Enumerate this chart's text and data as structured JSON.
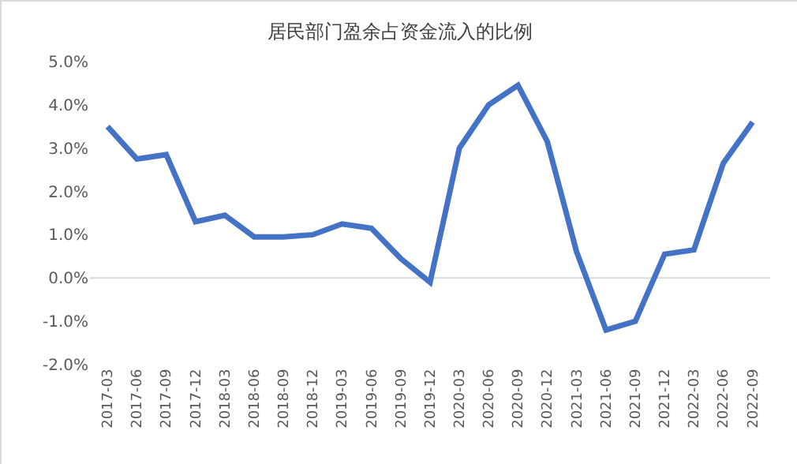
{
  "chart_data": {
    "type": "line",
    "title": "居民部门盈余占资金流入的比例",
    "categories": [
      "2017-03",
      "2017-06",
      "2017-09",
      "2017-12",
      "2018-03",
      "2018-06",
      "2018-09",
      "2018-12",
      "2019-03",
      "2019-06",
      "2019-09",
      "2019-12",
      "2020-03",
      "2020-06",
      "2020-09",
      "2020-12",
      "2021-03",
      "2021-06",
      "2021-09",
      "2021-12",
      "2022-03",
      "2022-06",
      "2022-09"
    ],
    "series": [
      {
        "color": "#4472c4",
        "values": [
          3.5,
          2.75,
          2.85,
          1.3,
          1.45,
          0.95,
          0.95,
          1.0,
          1.25,
          1.15,
          0.45,
          -0.1,
          3.0,
          4.0,
          4.45,
          3.15,
          0.6,
          -1.2,
          -1.0,
          0.55,
          0.65,
          2.65,
          3.6
        ]
      }
    ],
    "ylim": [
      -2,
      5
    ],
    "yticks": [
      {
        "value": -2,
        "label": "-2.0%"
      },
      {
        "value": -1,
        "label": "-1.0%"
      },
      {
        "value": 0,
        "label": "0.0%"
      },
      {
        "value": 1,
        "label": "1.0%"
      },
      {
        "value": 2,
        "label": "2.0%"
      },
      {
        "value": 3,
        "label": "3.0%"
      },
      {
        "value": 4,
        "label": "4.0%"
      },
      {
        "value": 5,
        "label": "5.0%"
      }
    ],
    "ref_lines": [
      {
        "axis": "y",
        "value": 0,
        "color": "#d9d9d9"
      }
    ],
    "grid": false,
    "marker": "none",
    "line_style": "solid"
  }
}
